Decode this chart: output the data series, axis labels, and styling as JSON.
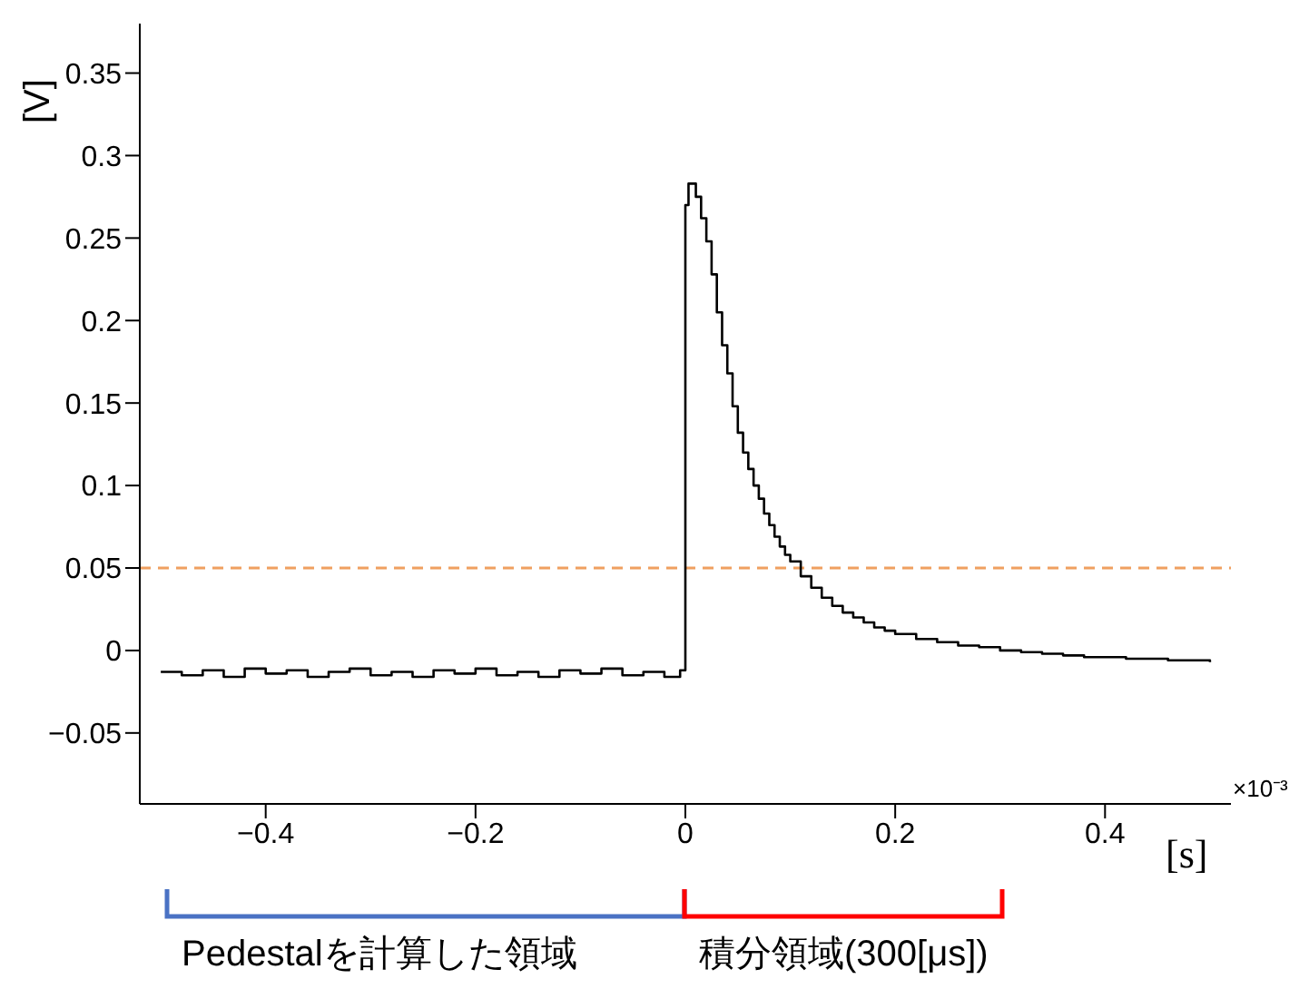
{
  "chart_data": {
    "type": "step",
    "xlabel": "[s]",
    "ylabel": "[V]",
    "x": [
      -0.5,
      -0.48,
      -0.46,
      -0.44,
      -0.42,
      -0.4,
      -0.38,
      -0.36,
      -0.34,
      -0.32,
      -0.3,
      -0.28,
      -0.26,
      -0.24,
      -0.22,
      -0.2,
      -0.18,
      -0.16,
      -0.14,
      -0.12,
      -0.1,
      -0.08,
      -0.06,
      -0.04,
      -0.02,
      -0.005,
      0,
      0.003,
      0.01,
      0.015,
      0.02,
      0.025,
      0.03,
      0.035,
      0.04,
      0.045,
      0.05,
      0.055,
      0.06,
      0.065,
      0.07,
      0.075,
      0.08,
      0.085,
      0.09,
      0.095,
      0.1,
      0.11,
      0.12,
      0.13,
      0.14,
      0.15,
      0.16,
      0.17,
      0.18,
      0.19,
      0.2,
      0.22,
      0.24,
      0.26,
      0.28,
      0.3,
      0.32,
      0.34,
      0.36,
      0.38,
      0.4,
      0.42,
      0.44,
      0.46,
      0.48,
      0.5
    ],
    "series": [
      {
        "color": "#000000",
        "values": [
          -0.013,
          -0.015,
          -0.012,
          -0.016,
          -0.011,
          -0.014,
          -0.012,
          -0.016,
          -0.013,
          -0.011,
          -0.015,
          -0.013,
          -0.016,
          -0.012,
          -0.014,
          -0.011,
          -0.015,
          -0.013,
          -0.016,
          -0.012,
          -0.014,
          -0.011,
          -0.015,
          -0.013,
          -0.016,
          -0.012,
          0.27,
          0.283,
          0.275,
          0.262,
          0.248,
          0.228,
          0.205,
          0.185,
          0.168,
          0.148,
          0.132,
          0.12,
          0.11,
          0.1,
          0.092,
          0.083,
          0.076,
          0.069,
          0.063,
          0.058,
          0.054,
          0.045,
          0.038,
          0.032,
          0.027,
          0.023,
          0.02,
          0.017,
          0.014,
          0.012,
          0.01,
          0.007,
          0.005,
          0.003,
          0.002,
          0,
          -0.001,
          -0.002,
          -0.003,
          -0.004,
          -0.004,
          -0.005,
          -0.005,
          -0.006,
          -0.006,
          -0.007
        ]
      }
    ],
    "xlim": [
      -0.52,
      0.52
    ],
    "xticks": [
      {
        "value": -0.4,
        "label": "−0.4"
      },
      {
        "value": -0.2,
        "label": "−0.2"
      },
      0,
      0.2,
      0.4
    ],
    "ylim": [
      -0.093,
      0.38
    ],
    "yticks": [
      {
        "value": -0.05,
        "label": "−0.05"
      },
      0,
      0.05,
      0.1,
      0.15,
      0.2,
      0.25,
      0.3,
      0.35
    ],
    "ref_lines": [
      {
        "axis": "y",
        "value": 0.05,
        "color": "#f0a060",
        "line_style": "dashed"
      }
    ],
    "grid": false,
    "legend": false,
    "marker": "none",
    "annotations": [
      "×10⁻³",
      "Pedestalを計算した領域",
      "積分領域(300[μs])"
    ]
  }
}
